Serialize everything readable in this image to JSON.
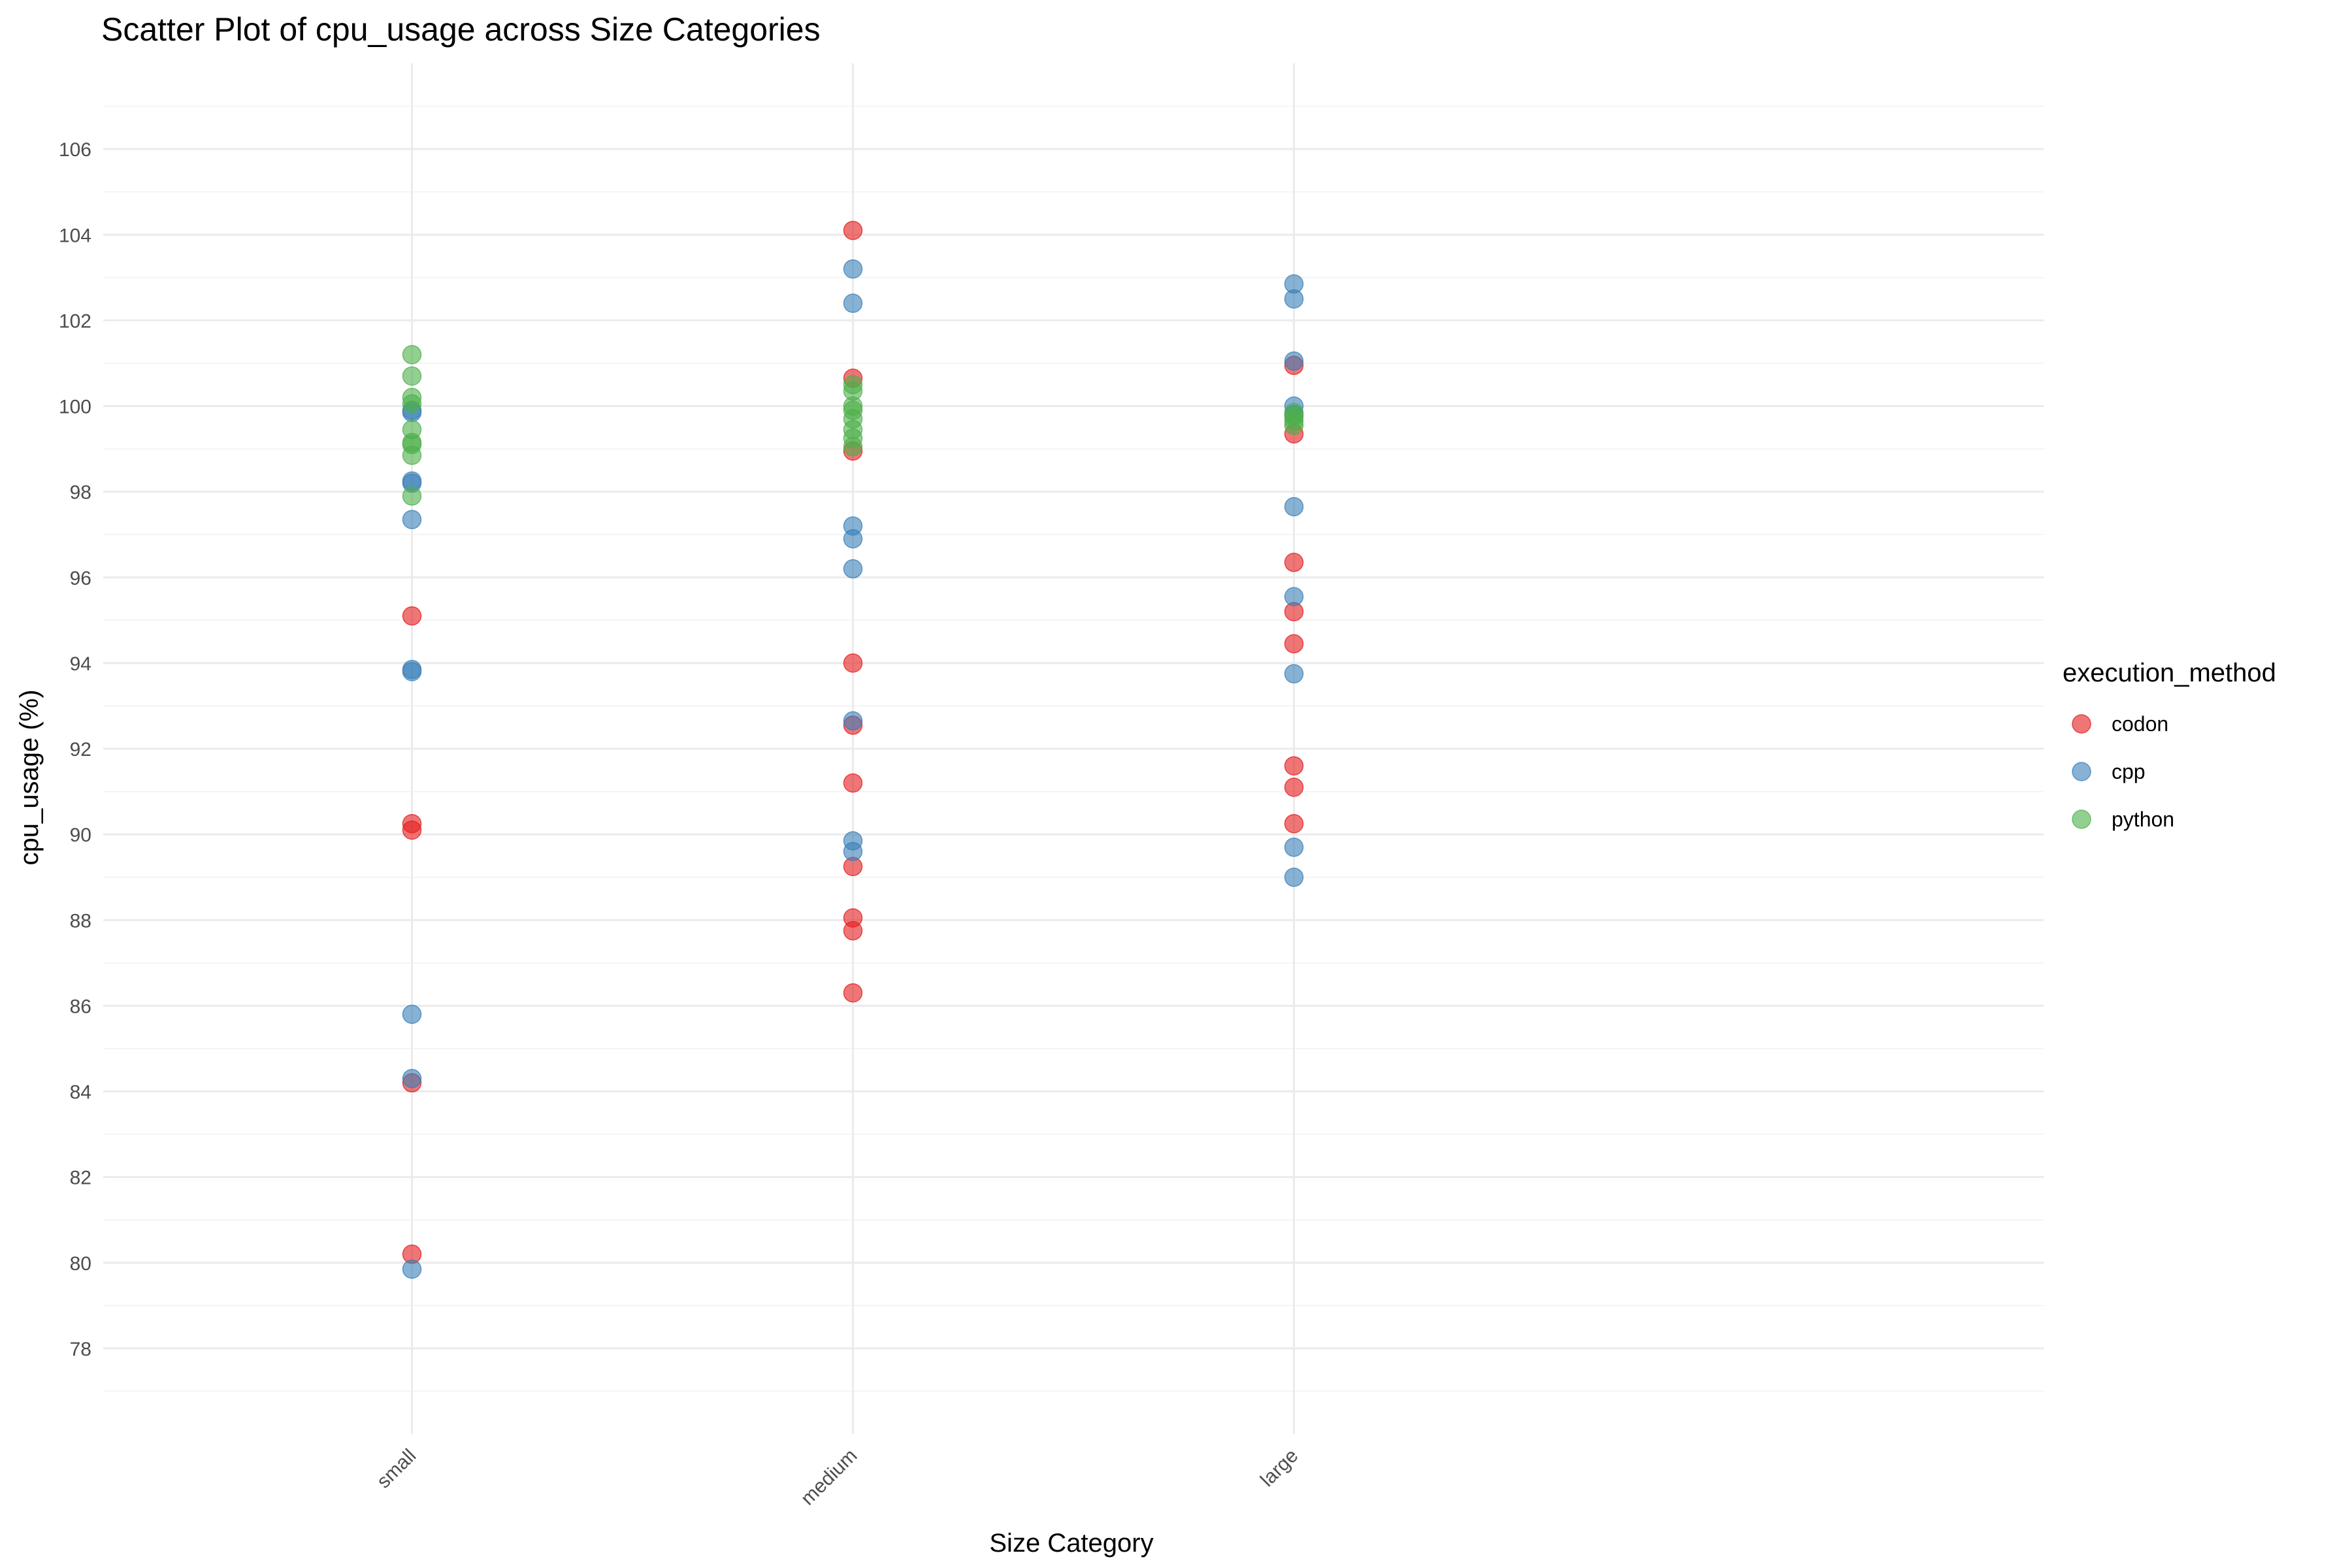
{
  "chart_data": {
    "type": "scatter",
    "title": "Scatter Plot of cpu_usage across Size Categories",
    "xlabel": "Size Category",
    "ylabel": "cpu_usage (%)",
    "categories": [
      "small",
      "medium",
      "large"
    ],
    "ylim": [
      76,
      108
    ],
    "yticks": [
      78,
      80,
      82,
      84,
      86,
      88,
      90,
      92,
      94,
      96,
      98,
      100,
      102,
      104,
      106
    ],
    "grid": true,
    "legend": {
      "title": "execution_method",
      "position": "right"
    },
    "series": [
      {
        "name": "codon",
        "color": "#E41A1C",
        "points": [
          {
            "x": "small",
            "y": 95.1
          },
          {
            "x": "small",
            "y": 90.25
          },
          {
            "x": "small",
            "y": 90.1
          },
          {
            "x": "small",
            "y": 84.2
          },
          {
            "x": "small",
            "y": 80.2
          },
          {
            "x": "medium",
            "y": 104.1
          },
          {
            "x": "medium",
            "y": 100.65
          },
          {
            "x": "medium",
            "y": 98.95
          },
          {
            "x": "medium",
            "y": 94.0
          },
          {
            "x": "medium",
            "y": 92.55
          },
          {
            "x": "medium",
            "y": 91.2
          },
          {
            "x": "medium",
            "y": 89.25
          },
          {
            "x": "medium",
            "y": 88.05
          },
          {
            "x": "medium",
            "y": 87.75
          },
          {
            "x": "medium",
            "y": 86.3
          },
          {
            "x": "large",
            "y": 100.95
          },
          {
            "x": "large",
            "y": 99.35
          },
          {
            "x": "large",
            "y": 96.35
          },
          {
            "x": "large",
            "y": 95.2
          },
          {
            "x": "large",
            "y": 94.45
          },
          {
            "x": "large",
            "y": 91.6
          },
          {
            "x": "large",
            "y": 91.1
          },
          {
            "x": "large",
            "y": 90.25
          }
        ]
      },
      {
        "name": "cpp",
        "color": "#377EB8",
        "points": [
          {
            "x": "small",
            "y": 99.85
          },
          {
            "x": "small",
            "y": 99.9
          },
          {
            "x": "small",
            "y": 98.25
          },
          {
            "x": "small",
            "y": 98.2
          },
          {
            "x": "small",
            "y": 97.35
          },
          {
            "x": "small",
            "y": 93.85
          },
          {
            "x": "small",
            "y": 93.8
          },
          {
            "x": "small",
            "y": 85.8
          },
          {
            "x": "small",
            "y": 84.3
          },
          {
            "x": "small",
            "y": 79.85
          },
          {
            "x": "medium",
            "y": 103.2
          },
          {
            "x": "medium",
            "y": 102.4
          },
          {
            "x": "medium",
            "y": 97.2
          },
          {
            "x": "medium",
            "y": 96.9
          },
          {
            "x": "medium",
            "y": 96.2
          },
          {
            "x": "medium",
            "y": 92.65
          },
          {
            "x": "medium",
            "y": 89.85
          },
          {
            "x": "medium",
            "y": 89.6
          },
          {
            "x": "large",
            "y": 102.85
          },
          {
            "x": "large",
            "y": 102.5
          },
          {
            "x": "large",
            "y": 101.05
          },
          {
            "x": "large",
            "y": 100.0
          },
          {
            "x": "large",
            "y": 99.8
          },
          {
            "x": "large",
            "y": 97.65
          },
          {
            "x": "large",
            "y": 95.55
          },
          {
            "x": "large",
            "y": 93.75
          },
          {
            "x": "large",
            "y": 89.7
          },
          {
            "x": "large",
            "y": 89.0
          }
        ]
      },
      {
        "name": "python",
        "color": "#4DAF4A",
        "points": [
          {
            "x": "small",
            "y": 101.2
          },
          {
            "x": "small",
            "y": 100.7
          },
          {
            "x": "small",
            "y": 100.2
          },
          {
            "x": "small",
            "y": 100.05
          },
          {
            "x": "small",
            "y": 99.45
          },
          {
            "x": "small",
            "y": 99.1
          },
          {
            "x": "small",
            "y": 99.15
          },
          {
            "x": "small",
            "y": 98.85
          },
          {
            "x": "small",
            "y": 97.9
          },
          {
            "x": "medium",
            "y": 100.5
          },
          {
            "x": "medium",
            "y": 100.35
          },
          {
            "x": "medium",
            "y": 100.0
          },
          {
            "x": "medium",
            "y": 99.9
          },
          {
            "x": "medium",
            "y": 99.7
          },
          {
            "x": "medium",
            "y": 99.45
          },
          {
            "x": "medium",
            "y": 99.25
          },
          {
            "x": "medium",
            "y": 99.05
          },
          {
            "x": "large",
            "y": 99.85
          },
          {
            "x": "large",
            "y": 99.75
          },
          {
            "x": "large",
            "y": 99.65
          },
          {
            "x": "large",
            "y": 99.55
          }
        ]
      }
    ]
  }
}
